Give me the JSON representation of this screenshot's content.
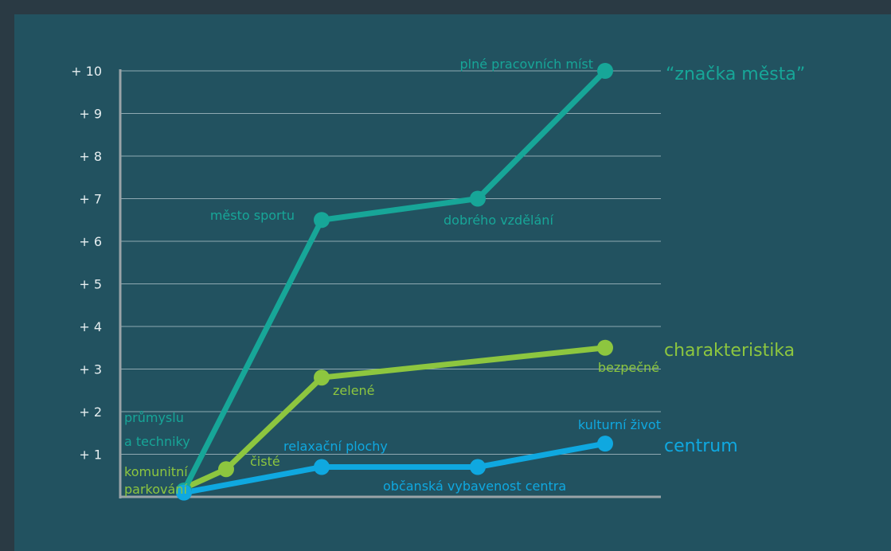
{
  "chart_data": {
    "type": "line",
    "ylim": [
      0,
      10
    ],
    "y_ticks": [
      {
        "value": 1,
        "label": "+ 1"
      },
      {
        "value": 2,
        "label": "+ 2"
      },
      {
        "value": 3,
        "label": "+ 3"
      },
      {
        "value": 4,
        "label": "+ 4"
      },
      {
        "value": 5,
        "label": "+ 5"
      },
      {
        "value": 6,
        "label": "+ 6"
      },
      {
        "value": 7,
        "label": "+ 7"
      },
      {
        "value": 8,
        "label": "+ 8"
      },
      {
        "value": 9,
        "label": "+ 9"
      },
      {
        "value": 10,
        "label": "+ 10"
      }
    ],
    "grid": true,
    "series": [
      {
        "name": "“značka města”",
        "color": "#17a698",
        "points": [
          {
            "x": 1,
            "y": 0.15,
            "label": "průmyslu a techniky"
          },
          {
            "x": 2,
            "y": 6.5,
            "label": "město sportu"
          },
          {
            "x": 3,
            "y": 7.0,
            "label": "dobrého vzdělání"
          },
          {
            "x": 4,
            "y": 10.0,
            "label": "plné pracovních míst"
          }
        ]
      },
      {
        "name": "charakteristika",
        "color": "#8dc63f",
        "points": [
          {
            "x": 1,
            "y": 0.2,
            "label": "komunitní parkování"
          },
          {
            "x": 1.3,
            "y": 0.65,
            "label": "čisté"
          },
          {
            "x": 2,
            "y": 2.8,
            "label": "zelené"
          },
          {
            "x": 4,
            "y": 3.5,
            "label": "bezpečné"
          }
        ]
      },
      {
        "name": "centrum",
        "color": "#0fa8e0",
        "points": [
          {
            "x": 1,
            "y": 0.1,
            "label": ""
          },
          {
            "x": 2,
            "y": 0.7,
            "label": "relaxační plochy"
          },
          {
            "x": 3,
            "y": 0.7,
            "label": "občanská vybavenost centra"
          },
          {
            "x": 4,
            "y": 1.25,
            "label": "kulturní život"
          }
        ]
      }
    ]
  }
}
